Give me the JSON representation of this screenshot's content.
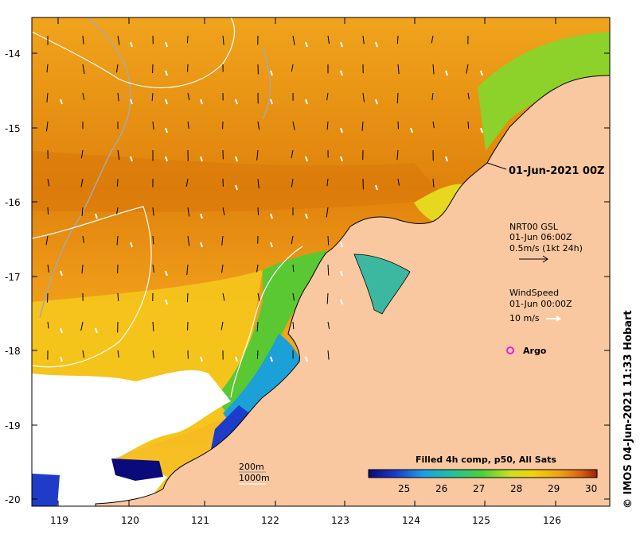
{
  "map": {
    "lat_ticks": [
      "-14",
      "-15",
      "-16",
      "-17",
      "-18",
      "-19",
      "-20"
    ],
    "lon_ticks": [
      "119",
      "120",
      "121",
      "122",
      "123",
      "124",
      "125",
      "126"
    ],
    "date_label": "01-Jun-2021 00Z",
    "currents_legend": {
      "line1": "NRT00 GSL",
      "line2": "01-Jun 06:00Z",
      "line3": "0.5m/s (1kt 24h)"
    },
    "wind_legend": {
      "line1": "WindSpeed",
      "line2": "01-Jun 00:00Z",
      "line3": "10 m/s"
    },
    "argo_label": "Argo",
    "bathy_legend": {
      "line1": "200m",
      "line2": "1000m"
    },
    "colorbar": {
      "title": "Filled 4h comp, p50, All Sats",
      "ticks": [
        "25",
        "26",
        "27",
        "28",
        "29",
        "30"
      ]
    },
    "credit": "© IMOS 04-Jun-2021 11:33 Hobart"
  },
  "colors": {
    "land": "#f9c8a0",
    "warm_sea": "#e8920f",
    "cool_sea": "#2fb35a",
    "cloud": "#ffffff",
    "argo": "#e020e0"
  },
  "icons": {
    "argo": "argo-float-icon",
    "current": "current-arrow-icon",
    "wind": "wind-arrow-icon"
  }
}
